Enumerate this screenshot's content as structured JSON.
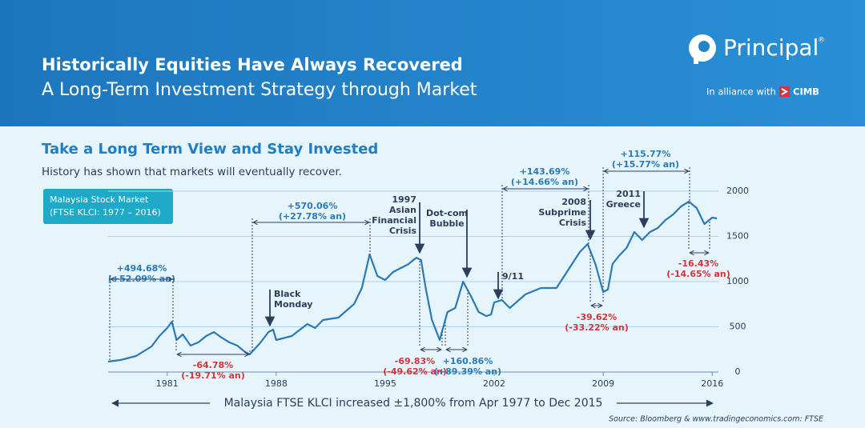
{
  "header": {
    "title": "Historically Equities Have Always Recovered",
    "subtitle": "A Long-Term Investment Strategy through Market",
    "brand": "Principal",
    "registered": "®",
    "alliance": "In alliance with",
    "partner": "CIMB"
  },
  "chart_data": {
    "type": "line",
    "title": "Take a Long Term View and Stay Invested",
    "subtitle": "History has shown that markets will eventually recover.",
    "legend_box": [
      "Malaysia Stock Market",
      "(FTSE KLCI: 1977 – 2016)"
    ],
    "color": "#2a7ab8",
    "x": [
      1977.2,
      1978,
      1979,
      1980,
      1980.5,
      1981,
      1981.3,
      1981.6,
      1982,
      1982.5,
      1983,
      1983.5,
      1984,
      1984.5,
      1985,
      1985.5,
      1986,
      1986.3,
      1987,
      1987.5,
      1987.8,
      1988,
      1989,
      1990,
      1990.5,
      1991,
      1992,
      1993,
      1993.5,
      1994,
      1994.5,
      1995,
      1995.5,
      1996,
      1996.5,
      1997,
      1997.3,
      1997.6,
      1998,
      1998.5,
      1999,
      1999.5,
      2000,
      2000.5,
      2001,
      2001.5,
      2001.8,
      2002,
      2002.5,
      2003,
      2004,
      2005,
      2006,
      2007,
      2007.5,
      2008,
      2008.5,
      2009,
      2009.3,
      2009.6,
      2010,
      2010.5,
      2011,
      2011.5,
      2012,
      2012.5,
      2013,
      2013.5,
      2014,
      2014.5,
      2015,
      2015.5,
      2016,
      2016.3
    ],
    "values": [
      115,
      133,
      177,
      283,
      398,
      487,
      557,
      354,
      416,
      292,
      327,
      398,
      442,
      380,
      327,
      292,
      221,
      195,
      327,
      442,
      469,
      354,
      398,
      531,
      487,
      575,
      602,
      752,
      929,
      1300,
      1062,
      1018,
      1106,
      1150,
      1195,
      1265,
      1239,
      929,
      575,
      354,
      664,
      708,
      1000,
      841,
      664,
      619,
      637,
      770,
      796,
      708,
      858,
      929,
      929,
      1195,
      1327,
      1416,
      1195,
      885,
      912,
      1195,
      1283,
      1372,
      1549,
      1460,
      1549,
      1593,
      1681,
      1743,
      1832,
      1885,
      1814,
      1637,
      1708,
      1699
    ],
    "xlim": [
      1977,
      2016.4
    ],
    "xticks": [
      1981,
      1988,
      1995,
      2002,
      2009,
      2016
    ],
    "ylim": [
      0,
      2000
    ],
    "yticks": [
      0,
      500,
      1000,
      1500,
      2000
    ],
    "grid": true,
    "annotations": [
      {
        "lines": [
          "+494.68%",
          "(+52.09% an)"
        ],
        "color": "#2a7ab8"
      },
      {
        "lines": [
          "-64.78%",
          "(-19.71% an)"
        ],
        "color": "#d8323a"
      },
      {
        "lines": [
          "+570.06%",
          "(+27.78% an)"
        ],
        "color": "#2a7ab8"
      },
      {
        "lines": [
          "-69.83%",
          "(-49.62% an)"
        ],
        "color": "#d8323a"
      },
      {
        "lines": [
          "+160.86%",
          "(+89.39% an)"
        ],
        "color": "#2a7ab8"
      },
      {
        "lines": [
          "+143.69%",
          "(+14.66% an)"
        ],
        "color": "#2a7ab8"
      },
      {
        "lines": [
          "+115.77%",
          "(+15.77% an)"
        ],
        "color": "#2a7ab8"
      },
      {
        "lines": [
          "-39.62%",
          "(-33.22% an)"
        ],
        "color": "#d8323a"
      },
      {
        "lines": [
          "-16.43%",
          "(-14.65% an)"
        ],
        "color": "#d8323a"
      }
    ],
    "events": [
      {
        "lines": [
          "Black",
          "Monday"
        ]
      },
      {
        "lines": [
          "1997",
          "Asian",
          "Financial",
          "Crisis"
        ]
      },
      {
        "lines": [
          "Dot-com",
          "Bubble"
        ]
      },
      {
        "lines": [
          "9/11"
        ]
      },
      {
        "lines": [
          "2008",
          "Subprime",
          "Crisis"
        ]
      },
      {
        "lines": [
          "2011",
          "Greece"
        ]
      }
    ],
    "caption": "Malaysia FTSE KLCI increased ±1,800% from Apr 1977 to Dec 2015",
    "source": "Source: Bloomberg & www.tradingeconomics.com: FTSE"
  }
}
